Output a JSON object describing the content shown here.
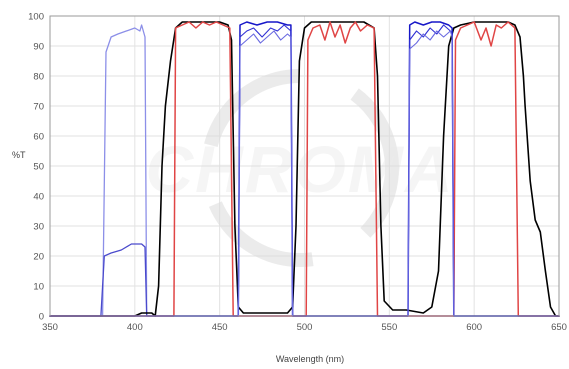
{
  "chart_data": {
    "type": "line",
    "title": "",
    "xlabel": "Wavelength (nm)",
    "ylabel": "%T",
    "xlim": [
      350,
      650
    ],
    "ylim": [
      0,
      100
    ],
    "x_ticks": [
      350,
      400,
      450,
      500,
      550,
      600,
      650
    ],
    "y_ticks": [
      0,
      10,
      20,
      30,
      40,
      50,
      60,
      70,
      80,
      90,
      100
    ],
    "grid": true,
    "legend": "none",
    "watermark": "CHROMA",
    "series": [
      {
        "color": "#8c8fe8",
        "width": 1.3,
        "points": [
          [
            350,
            0
          ],
          [
            381,
            0
          ],
          [
            383,
            88
          ],
          [
            386,
            93
          ],
          [
            390,
            94
          ],
          [
            395,
            95
          ],
          [
            400,
            96
          ],
          [
            403,
            95
          ],
          [
            404,
            97
          ],
          [
            406,
            93
          ],
          [
            407,
            0
          ],
          [
            650,
            0
          ]
        ]
      },
      {
        "color": "#4a4acc",
        "width": 1.3,
        "points": [
          [
            350,
            0
          ],
          [
            380,
            0
          ],
          [
            382,
            20
          ],
          [
            386,
            21
          ],
          [
            392,
            22
          ],
          [
            398,
            24
          ],
          [
            404,
            24
          ],
          [
            406,
            23
          ],
          [
            407,
            0
          ],
          [
            650,
            0
          ]
        ]
      },
      {
        "color": "#000000",
        "width": 1.6,
        "points": [
          [
            350,
            0
          ],
          [
            400,
            0
          ],
          [
            404,
            1
          ],
          [
            410,
            1
          ],
          [
            412,
            0
          ],
          [
            414,
            10
          ],
          [
            416,
            50
          ],
          [
            418,
            70
          ],
          [
            421,
            85
          ],
          [
            424,
            96
          ],
          [
            428,
            98
          ],
          [
            440,
            98
          ],
          [
            450,
            98
          ],
          [
            455,
            97
          ],
          [
            457,
            92
          ],
          [
            459,
            30
          ],
          [
            461,
            3
          ],
          [
            464,
            1
          ],
          [
            470,
            1
          ],
          [
            480,
            1
          ],
          [
            490,
            1
          ],
          [
            493,
            3
          ],
          [
            495,
            30
          ],
          [
            497,
            85
          ],
          [
            500,
            96
          ],
          [
            504,
            98
          ],
          [
            520,
            98
          ],
          [
            535,
            98
          ],
          [
            541,
            96
          ],
          [
            543,
            80
          ],
          [
            545,
            30
          ],
          [
            547,
            5
          ],
          [
            552,
            2
          ],
          [
            560,
            2
          ],
          [
            570,
            1
          ],
          [
            575,
            3
          ],
          [
            579,
            15
          ],
          [
            582,
            60
          ],
          [
            585,
            90
          ],
          [
            588,
            96
          ],
          [
            592,
            97
          ],
          [
            600,
            98
          ],
          [
            610,
            98
          ],
          [
            620,
            98
          ],
          [
            624,
            97
          ],
          [
            627,
            93
          ],
          [
            629,
            80
          ],
          [
            630,
            70
          ],
          [
            633,
            45
          ],
          [
            636,
            32
          ],
          [
            639,
            28
          ],
          [
            642,
            15
          ],
          [
            645,
            3
          ],
          [
            648,
            0
          ],
          [
            650,
            0
          ]
        ]
      },
      {
        "color": "#e04545",
        "width": 1.5,
        "points": [
          [
            350,
            0
          ],
          [
            423,
            0
          ],
          [
            424,
            96
          ],
          [
            428,
            97
          ],
          [
            432,
            98
          ],
          [
            436,
            96
          ],
          [
            440,
            98
          ],
          [
            444,
            97
          ],
          [
            448,
            98
          ],
          [
            452,
            97
          ],
          [
            456,
            96
          ],
          [
            458,
            0
          ],
          [
            501,
            0
          ],
          [
            502,
            92
          ],
          [
            505,
            96
          ],
          [
            509,
            97
          ],
          [
            512,
            92
          ],
          [
            515,
            98
          ],
          [
            518,
            93
          ],
          [
            521,
            97
          ],
          [
            524,
            91
          ],
          [
            527,
            96
          ],
          [
            530,
            98
          ],
          [
            533,
            95
          ],
          [
            537,
            97
          ],
          [
            541,
            96
          ],
          [
            543,
            0
          ],
          [
            588,
            0
          ],
          [
            589,
            92
          ],
          [
            592,
            96
          ],
          [
            596,
            97
          ],
          [
            600,
            98
          ],
          [
            604,
            92
          ],
          [
            607,
            96
          ],
          [
            610,
            90
          ],
          [
            613,
            97
          ],
          [
            616,
            96
          ],
          [
            620,
            98
          ],
          [
            624,
            96
          ],
          [
            626,
            0
          ],
          [
            650,
            0
          ]
        ]
      },
      {
        "color": "#1717c8",
        "width": 1.5,
        "points": [
          [
            350,
            0
          ],
          [
            461,
            0
          ],
          [
            462,
            97
          ],
          [
            466,
            98
          ],
          [
            472,
            97
          ],
          [
            478,
            98
          ],
          [
            484,
            98
          ],
          [
            490,
            97
          ],
          [
            492,
            97
          ],
          [
            493,
            0
          ],
          [
            561,
            0
          ],
          [
            562,
            97
          ],
          [
            565,
            98
          ],
          [
            570,
            97
          ],
          [
            575,
            98
          ],
          [
            580,
            98
          ],
          [
            585,
            97
          ],
          [
            587,
            96
          ],
          [
            588,
            0
          ],
          [
            650,
            0
          ]
        ]
      },
      {
        "color": "#3030d4",
        "width": 1.1,
        "points": [
          [
            350,
            0
          ],
          [
            461,
            0
          ],
          [
            462,
            93
          ],
          [
            466,
            95
          ],
          [
            470,
            96
          ],
          [
            475,
            93
          ],
          [
            480,
            96
          ],
          [
            484,
            95
          ],
          [
            488,
            97
          ],
          [
            492,
            95
          ],
          [
            493,
            0
          ],
          [
            561,
            0
          ],
          [
            562,
            92
          ],
          [
            566,
            95
          ],
          [
            570,
            93
          ],
          [
            574,
            96
          ],
          [
            578,
            94
          ],
          [
            582,
            97
          ],
          [
            586,
            95
          ],
          [
            587,
            94
          ],
          [
            588,
            0
          ],
          [
            650,
            0
          ]
        ]
      },
      {
        "color": "#6a6ae0",
        "width": 1.1,
        "points": [
          [
            350,
            0
          ],
          [
            461,
            0
          ],
          [
            462,
            90
          ],
          [
            466,
            92
          ],
          [
            470,
            94
          ],
          [
            474,
            91
          ],
          [
            478,
            93
          ],
          [
            482,
            95
          ],
          [
            486,
            92
          ],
          [
            490,
            94
          ],
          [
            492,
            93
          ],
          [
            493,
            0
          ],
          [
            561,
            0
          ],
          [
            562,
            89
          ],
          [
            566,
            91
          ],
          [
            570,
            94
          ],
          [
            574,
            92
          ],
          [
            578,
            95
          ],
          [
            582,
            93
          ],
          [
            586,
            95
          ],
          [
            587,
            93
          ],
          [
            588,
            0
          ],
          [
            650,
            0
          ]
        ]
      }
    ]
  }
}
